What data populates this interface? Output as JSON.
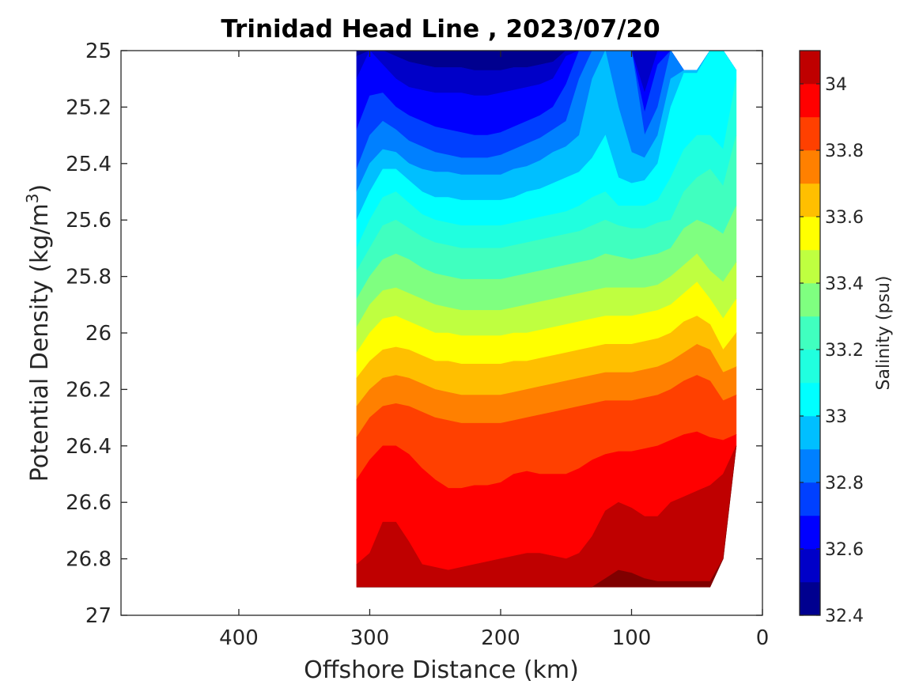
{
  "chart_data": {
    "type": "contour",
    "title": "Trinidad Head Line , 2023/07/20",
    "xlabel": "Offshore Distance (km)",
    "ylabel_main": "Potential Density (kg/m",
    "ylabel_sup": "3",
    "ylabel_close": ")",
    "xlim": [
      490,
      0
    ],
    "ylim": [
      25,
      27
    ],
    "x_reversed": true,
    "y_reversed": true,
    "xticks": [
      400,
      300,
      200,
      100,
      0
    ],
    "yticks": [
      25,
      25.2,
      25.4,
      25.6,
      25.8,
      26,
      26.2,
      26.4,
      26.6,
      26.8,
      27
    ],
    "grid": false,
    "colorbar": {
      "label": "Salinity (psu)",
      "range": [
        32.4,
        34.1
      ],
      "ticks": [
        32.4,
        32.6,
        32.8,
        33,
        33.2,
        33.4,
        33.6,
        33.8,
        34
      ],
      "levels": [
        32.4,
        32.5,
        32.6,
        32.7,
        32.8,
        32.9,
        33.0,
        33.1,
        33.2,
        33.3,
        33.4,
        33.5,
        33.6,
        33.7,
        33.8,
        33.9,
        34.0,
        34.1
      ],
      "colors": [
        "#00008f",
        "#0000c8",
        "#0000ff",
        "#0040ff",
        "#0080ff",
        "#00bfff",
        "#00ffff",
        "#20ffdf",
        "#40ffbf",
        "#7fff80",
        "#bfff40",
        "#ffff00",
        "#ffbf00",
        "#ff8000",
        "#ff4000",
        "#ff0000",
        "#bf0000",
        "#800000"
      ]
    },
    "stations_km": [
      310,
      300,
      290,
      280,
      270,
      260,
      250,
      240,
      230,
      220,
      210,
      200,
      190,
      180,
      170,
      160,
      150,
      140,
      130,
      120,
      110,
      100,
      90,
      80,
      70,
      60,
      50,
      40,
      30,
      20
    ],
    "data_coverage": {
      "x_range_km": [
        310,
        20
      ],
      "density_bottom": [
        26.9,
        26.9,
        26.9,
        26.9,
        26.9,
        26.9,
        26.9,
        26.9,
        26.9,
        26.9,
        26.9,
        26.9,
        26.9,
        26.9,
        26.9,
        26.9,
        26.9,
        26.9,
        26.9,
        26.9,
        26.9,
        26.9,
        26.9,
        26.9,
        26.9,
        26.9,
        26.9,
        26.9,
        26.8,
        26.4
      ],
      "density_top": [
        25.0,
        25.0,
        25.0,
        25.0,
        25.0,
        25.0,
        25.0,
        25.0,
        25.0,
        25.0,
        25.0,
        25.0,
        25.0,
        25.0,
        25.0,
        25.0,
        25.0,
        25.0,
        25.0,
        25.0,
        25.0,
        25.0,
        25.0,
        25.0,
        25.0,
        25.07,
        25.07,
        25.0,
        25.0,
        25.07
      ]
    },
    "isohalines": [
      {
        "level": 32.5,
        "density": [
          25.02,
          25.0,
          25.0,
          25.02,
          25.04,
          25.05,
          25.06,
          25.06,
          25.06,
          25.07,
          25.07,
          25.07,
          25.06,
          25.06,
          25.05,
          25.04,
          25.0,
          25.0,
          25.0,
          25.0,
          25.0,
          25.0,
          25.0,
          25.0,
          25.0,
          25.0,
          25.0,
          25.0,
          25.0,
          25.0
        ]
      },
      {
        "level": 32.6,
        "density": [
          25.1,
          25.0,
          25.05,
          25.1,
          25.13,
          25.14,
          25.15,
          25.15,
          25.15,
          25.16,
          25.16,
          25.15,
          25.14,
          25.13,
          25.12,
          25.1,
          25.02,
          25.0,
          25.0,
          25.0,
          25.0,
          25.0,
          25.15,
          25.0,
          25.0,
          25.0,
          25.0,
          25.0,
          25.0,
          25.0
        ]
      },
      {
        "level": 32.7,
        "density": [
          25.28,
          25.16,
          25.15,
          25.2,
          25.23,
          25.25,
          25.27,
          25.28,
          25.29,
          25.3,
          25.3,
          25.29,
          25.27,
          25.25,
          25.23,
          25.2,
          25.12,
          25.0,
          25.0,
          25.0,
          25.0,
          25.0,
          25.22,
          25.05,
          25.0,
          25.0,
          25.0,
          25.0,
          25.0,
          25.0
        ]
      },
      {
        "level": 32.8,
        "density": [
          25.42,
          25.3,
          25.25,
          25.28,
          25.32,
          25.34,
          25.36,
          25.37,
          25.38,
          25.38,
          25.38,
          25.37,
          25.35,
          25.33,
          25.31,
          25.28,
          25.25,
          25.1,
          25.0,
          25.0,
          25.0,
          25.0,
          25.3,
          25.2,
          25.0,
          25.0,
          25.0,
          25.0,
          25.0,
          25.0
        ]
      },
      {
        "level": 32.9,
        "density": [
          25.5,
          25.4,
          25.35,
          25.36,
          25.4,
          25.42,
          25.43,
          25.43,
          25.44,
          25.44,
          25.44,
          25.44,
          25.42,
          25.41,
          25.39,
          25.36,
          25.34,
          25.3,
          25.1,
          25.0,
          25.2,
          25.36,
          25.38,
          25.3,
          25.1,
          25.0,
          25.0,
          25.0,
          25.0,
          25.0
        ]
      },
      {
        "level": 33.0,
        "density": [
          25.6,
          25.5,
          25.42,
          25.42,
          25.46,
          25.5,
          25.52,
          25.52,
          25.53,
          25.53,
          25.53,
          25.53,
          25.52,
          25.5,
          25.49,
          25.47,
          25.45,
          25.43,
          25.38,
          25.3,
          25.45,
          25.47,
          25.46,
          25.4,
          25.2,
          25.08,
          25.08,
          25.0,
          25.0,
          25.0
        ]
      },
      {
        "level": 33.1,
        "density": [
          25.7,
          25.6,
          25.52,
          25.5,
          25.54,
          25.58,
          25.6,
          25.61,
          25.62,
          25.62,
          25.62,
          25.62,
          25.61,
          25.6,
          25.59,
          25.58,
          25.57,
          25.55,
          25.52,
          25.5,
          25.55,
          25.55,
          25.55,
          25.53,
          25.45,
          25.35,
          25.3,
          25.3,
          25.35,
          25.1
        ]
      },
      {
        "level": 33.2,
        "density": [
          25.78,
          25.7,
          25.62,
          25.6,
          25.63,
          25.66,
          25.68,
          25.69,
          25.7,
          25.7,
          25.7,
          25.7,
          25.69,
          25.68,
          25.67,
          25.66,
          25.65,
          25.64,
          25.62,
          25.6,
          25.62,
          25.63,
          25.63,
          25.61,
          25.6,
          25.5,
          25.45,
          25.42,
          25.48,
          25.3
        ]
      },
      {
        "level": 33.3,
        "density": [
          25.88,
          25.8,
          25.74,
          25.72,
          25.74,
          25.77,
          25.79,
          25.8,
          25.81,
          25.81,
          25.81,
          25.81,
          25.8,
          25.79,
          25.78,
          25.77,
          25.76,
          25.75,
          25.74,
          25.72,
          25.73,
          25.74,
          25.73,
          25.72,
          25.7,
          25.63,
          25.6,
          25.62,
          25.65,
          25.55
        ]
      },
      {
        "level": 33.4,
        "density": [
          25.98,
          25.9,
          25.85,
          25.84,
          25.86,
          25.88,
          25.9,
          25.91,
          25.92,
          25.92,
          25.92,
          25.92,
          25.91,
          25.9,
          25.89,
          25.88,
          25.87,
          25.86,
          25.85,
          25.84,
          25.84,
          25.84,
          25.84,
          25.83,
          25.8,
          25.76,
          25.72,
          25.78,
          25.82,
          25.75
        ]
      },
      {
        "level": 33.5,
        "density": [
          26.07,
          26.0,
          25.95,
          25.94,
          25.96,
          25.98,
          26.0,
          26.0,
          26.01,
          26.01,
          26.01,
          26.01,
          26.0,
          26.0,
          25.99,
          25.98,
          25.97,
          25.96,
          25.95,
          25.94,
          25.94,
          25.94,
          25.93,
          25.92,
          25.9,
          25.86,
          25.82,
          25.88,
          25.95,
          25.88
        ]
      },
      {
        "level": 33.6,
        "density": [
          26.16,
          26.1,
          26.06,
          26.05,
          26.06,
          26.08,
          26.1,
          26.1,
          26.11,
          26.11,
          26.11,
          26.11,
          26.1,
          26.1,
          26.09,
          26.08,
          26.07,
          26.06,
          26.05,
          26.04,
          26.04,
          26.04,
          26.03,
          26.02,
          26.0,
          25.96,
          25.94,
          25.97,
          26.06,
          26.0
        ]
      },
      {
        "level": 33.7,
        "density": [
          26.26,
          26.2,
          26.16,
          26.15,
          26.16,
          26.18,
          26.2,
          26.21,
          26.22,
          26.22,
          26.22,
          26.22,
          26.21,
          26.2,
          26.19,
          26.18,
          26.17,
          26.16,
          26.15,
          26.14,
          26.14,
          26.14,
          26.13,
          26.12,
          26.1,
          26.07,
          26.04,
          26.06,
          26.14,
          26.12
        ]
      },
      {
        "level": 33.8,
        "density": [
          26.37,
          26.3,
          26.26,
          26.25,
          26.26,
          26.28,
          26.3,
          26.31,
          26.32,
          26.32,
          26.32,
          26.32,
          26.31,
          26.3,
          26.29,
          26.28,
          26.27,
          26.26,
          26.25,
          26.24,
          26.24,
          26.24,
          26.23,
          26.22,
          26.2,
          26.17,
          26.15,
          26.17,
          26.24,
          26.22
        ]
      },
      {
        "level": 33.9,
        "density": [
          26.52,
          26.45,
          26.4,
          26.4,
          26.43,
          26.48,
          26.52,
          26.55,
          26.55,
          26.54,
          26.54,
          26.53,
          26.5,
          26.49,
          26.5,
          26.5,
          26.5,
          26.48,
          26.45,
          26.43,
          26.42,
          26.42,
          26.41,
          26.4,
          26.38,
          26.36,
          26.35,
          26.37,
          26.38,
          26.36
        ]
      },
      {
        "level": 34.0,
        "density": [
          26.82,
          26.78,
          26.67,
          26.67,
          26.74,
          26.82,
          26.83,
          26.84,
          26.83,
          26.82,
          26.81,
          26.8,
          26.79,
          26.78,
          26.78,
          26.79,
          26.8,
          26.78,
          26.72,
          26.63,
          26.6,
          26.62,
          26.65,
          26.65,
          26.6,
          26.58,
          26.56,
          26.54,
          26.5,
          26.4
        ]
      },
      {
        "level": 34.1,
        "density": [
          26.95,
          26.95,
          26.95,
          26.95,
          26.95,
          26.95,
          26.95,
          26.95,
          26.95,
          26.95,
          26.95,
          26.95,
          26.95,
          26.95,
          26.95,
          26.95,
          26.95,
          26.95,
          26.9,
          26.87,
          26.84,
          26.85,
          26.87,
          26.88,
          26.88,
          26.88,
          26.88,
          26.88,
          26.85,
          26.8
        ]
      }
    ]
  }
}
